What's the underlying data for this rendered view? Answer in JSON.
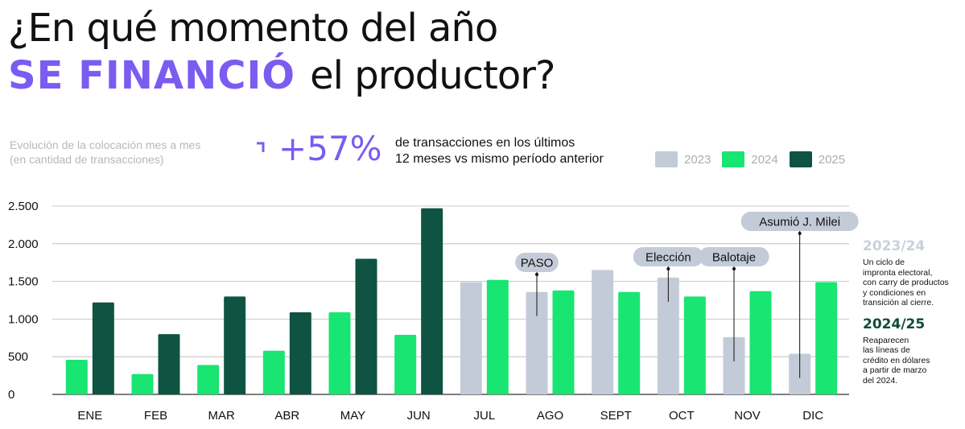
{
  "header": {
    "title_line1": "¿En qué momento del año",
    "title_accent": "SE FINANCIÓ",
    "title_rest": "el productor?"
  },
  "subtitle": {
    "line1": "Evolución de la colocación mes a mes",
    "line2": "(en cantidad de transacciones)"
  },
  "stat": {
    "value": "+57%",
    "text_line1": "de transacciones en los últimos",
    "text_line2": "12 meses vs mismo período anterior"
  },
  "legend": {
    "items": [
      {
        "label": "2023",
        "color": "#c4cbd8"
      },
      {
        "label": "2024",
        "color": "#19e572"
      },
      {
        "label": "2025",
        "color": "#0f5443"
      }
    ]
  },
  "side_notes": {
    "head1": "2023/24",
    "body1": [
      "Un ciclo de",
      "impronta electoral,",
      "con carry de productos",
      "y condiciones en",
      "transición al cierre."
    ],
    "head2": "2024/25",
    "body2": [
      "Reaparecen",
      "las líneas de",
      "crédito en dólares",
      "a partir de marzo",
      "del 2024."
    ]
  },
  "chart_data": {
    "type": "bar",
    "categories": [
      "ENE",
      "FEB",
      "MAR",
      "ABR",
      "MAY",
      "JUN",
      "JUL",
      "AGO",
      "SEPT",
      "OCT",
      "NOV",
      "DIC"
    ],
    "ylim": [
      0,
      2500
    ],
    "yticks": [
      0,
      500,
      1000,
      1500,
      2000,
      2500
    ],
    "ytick_labels": [
      "0",
      "500",
      "1.000",
      "1.500",
      "2.000",
      "2.500"
    ],
    "grid": true,
    "series": [
      {
        "name": "2023",
        "color": "#c4cbd8",
        "values": [
          null,
          null,
          null,
          null,
          null,
          null,
          1490,
          1360,
          1650,
          1550,
          760,
          540
        ]
      },
      {
        "name": "2024",
        "color": "#19e572",
        "values": [
          460,
          270,
          390,
          580,
          1090,
          790,
          1520,
          1380,
          1360,
          1300,
          1370,
          1490
        ]
      },
      {
        "name": "2025",
        "color": "#0f5443",
        "values": [
          1220,
          800,
          1300,
          1090,
          1800,
          2470,
          null,
          null,
          null,
          null,
          null,
          null
        ]
      }
    ],
    "annotations": [
      {
        "text": "PASO",
        "category": "AGO",
        "series": "2023"
      },
      {
        "text": "Elección",
        "category": "OCT",
        "series": "2023"
      },
      {
        "text": "Balotaje",
        "category": "NOV",
        "series": "2023"
      },
      {
        "text": "Asumió J. Milei",
        "category": "DIC",
        "series": "2023"
      }
    ]
  }
}
